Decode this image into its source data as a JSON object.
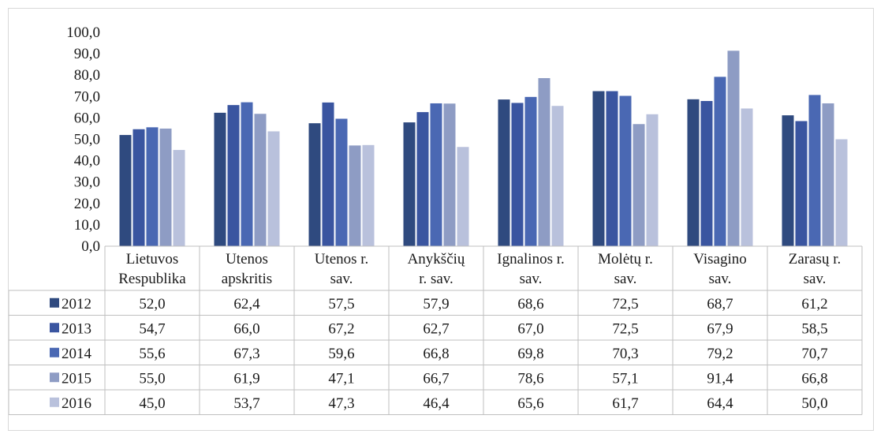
{
  "chart_data": {
    "type": "bar",
    "ylim": [
      0,
      100
    ],
    "y_ticks": [
      "0,0",
      "10,0",
      "20,0",
      "30,0",
      "40,0",
      "50,0",
      "60,0",
      "70,0",
      "80,0",
      "90,0",
      "100,0"
    ],
    "categories": [
      [
        "Lietuvos",
        "Respublika"
      ],
      [
        "Utenos",
        "apskritis"
      ],
      [
        "Utenos r.",
        "sav."
      ],
      [
        "Anykščių",
        "r. sav."
      ],
      [
        "Ignalinos r.",
        "sav."
      ],
      [
        "Molėtų r.",
        "sav."
      ],
      [
        "Visagino",
        "sav."
      ],
      [
        "Zarasų r.",
        "sav."
      ]
    ],
    "series": [
      {
        "name": "2012",
        "color": "#2f4a7f",
        "values": [
          52.0,
          62.4,
          57.5,
          57.9,
          68.6,
          72.5,
          68.7,
          61.2
        ],
        "labels": [
          "52,0",
          "62,4",
          "57,5",
          "57,9",
          "68,6",
          "72,5",
          "68,7",
          "61,2"
        ]
      },
      {
        "name": "2013",
        "color": "#3a55a0",
        "values": [
          54.7,
          66.0,
          67.2,
          62.7,
          67.0,
          72.5,
          67.9,
          58.5
        ],
        "labels": [
          "54,7",
          "66,0",
          "67,2",
          "62,7",
          "67,0",
          "72,5",
          "67,9",
          "58,5"
        ]
      },
      {
        "name": "2014",
        "color": "#4a68b3",
        "values": [
          55.6,
          67.3,
          59.6,
          66.8,
          69.8,
          70.3,
          79.2,
          70.7
        ],
        "labels": [
          "55,6",
          "67,3",
          "59,6",
          "66,8",
          "69,8",
          "70,3",
          "79,2",
          "70,7"
        ]
      },
      {
        "name": "2015",
        "color": "#8e9cc4",
        "values": [
          55.0,
          61.9,
          47.1,
          66.7,
          78.6,
          57.1,
          91.4,
          66.8
        ],
        "labels": [
          "55,0",
          "61,9",
          "47,1",
          "66,7",
          "78,6",
          "57,1",
          "91,4",
          "66,8"
        ]
      },
      {
        "name": "2016",
        "color": "#b9c1dc",
        "values": [
          45.0,
          53.7,
          47.3,
          46.4,
          65.6,
          61.7,
          64.4,
          50.0
        ],
        "labels": [
          "45,0",
          "53,7",
          "47,3",
          "46,4",
          "65,6",
          "61,7",
          "64,4",
          "50,0"
        ]
      }
    ],
    "grid": false,
    "legend": "data-table"
  }
}
